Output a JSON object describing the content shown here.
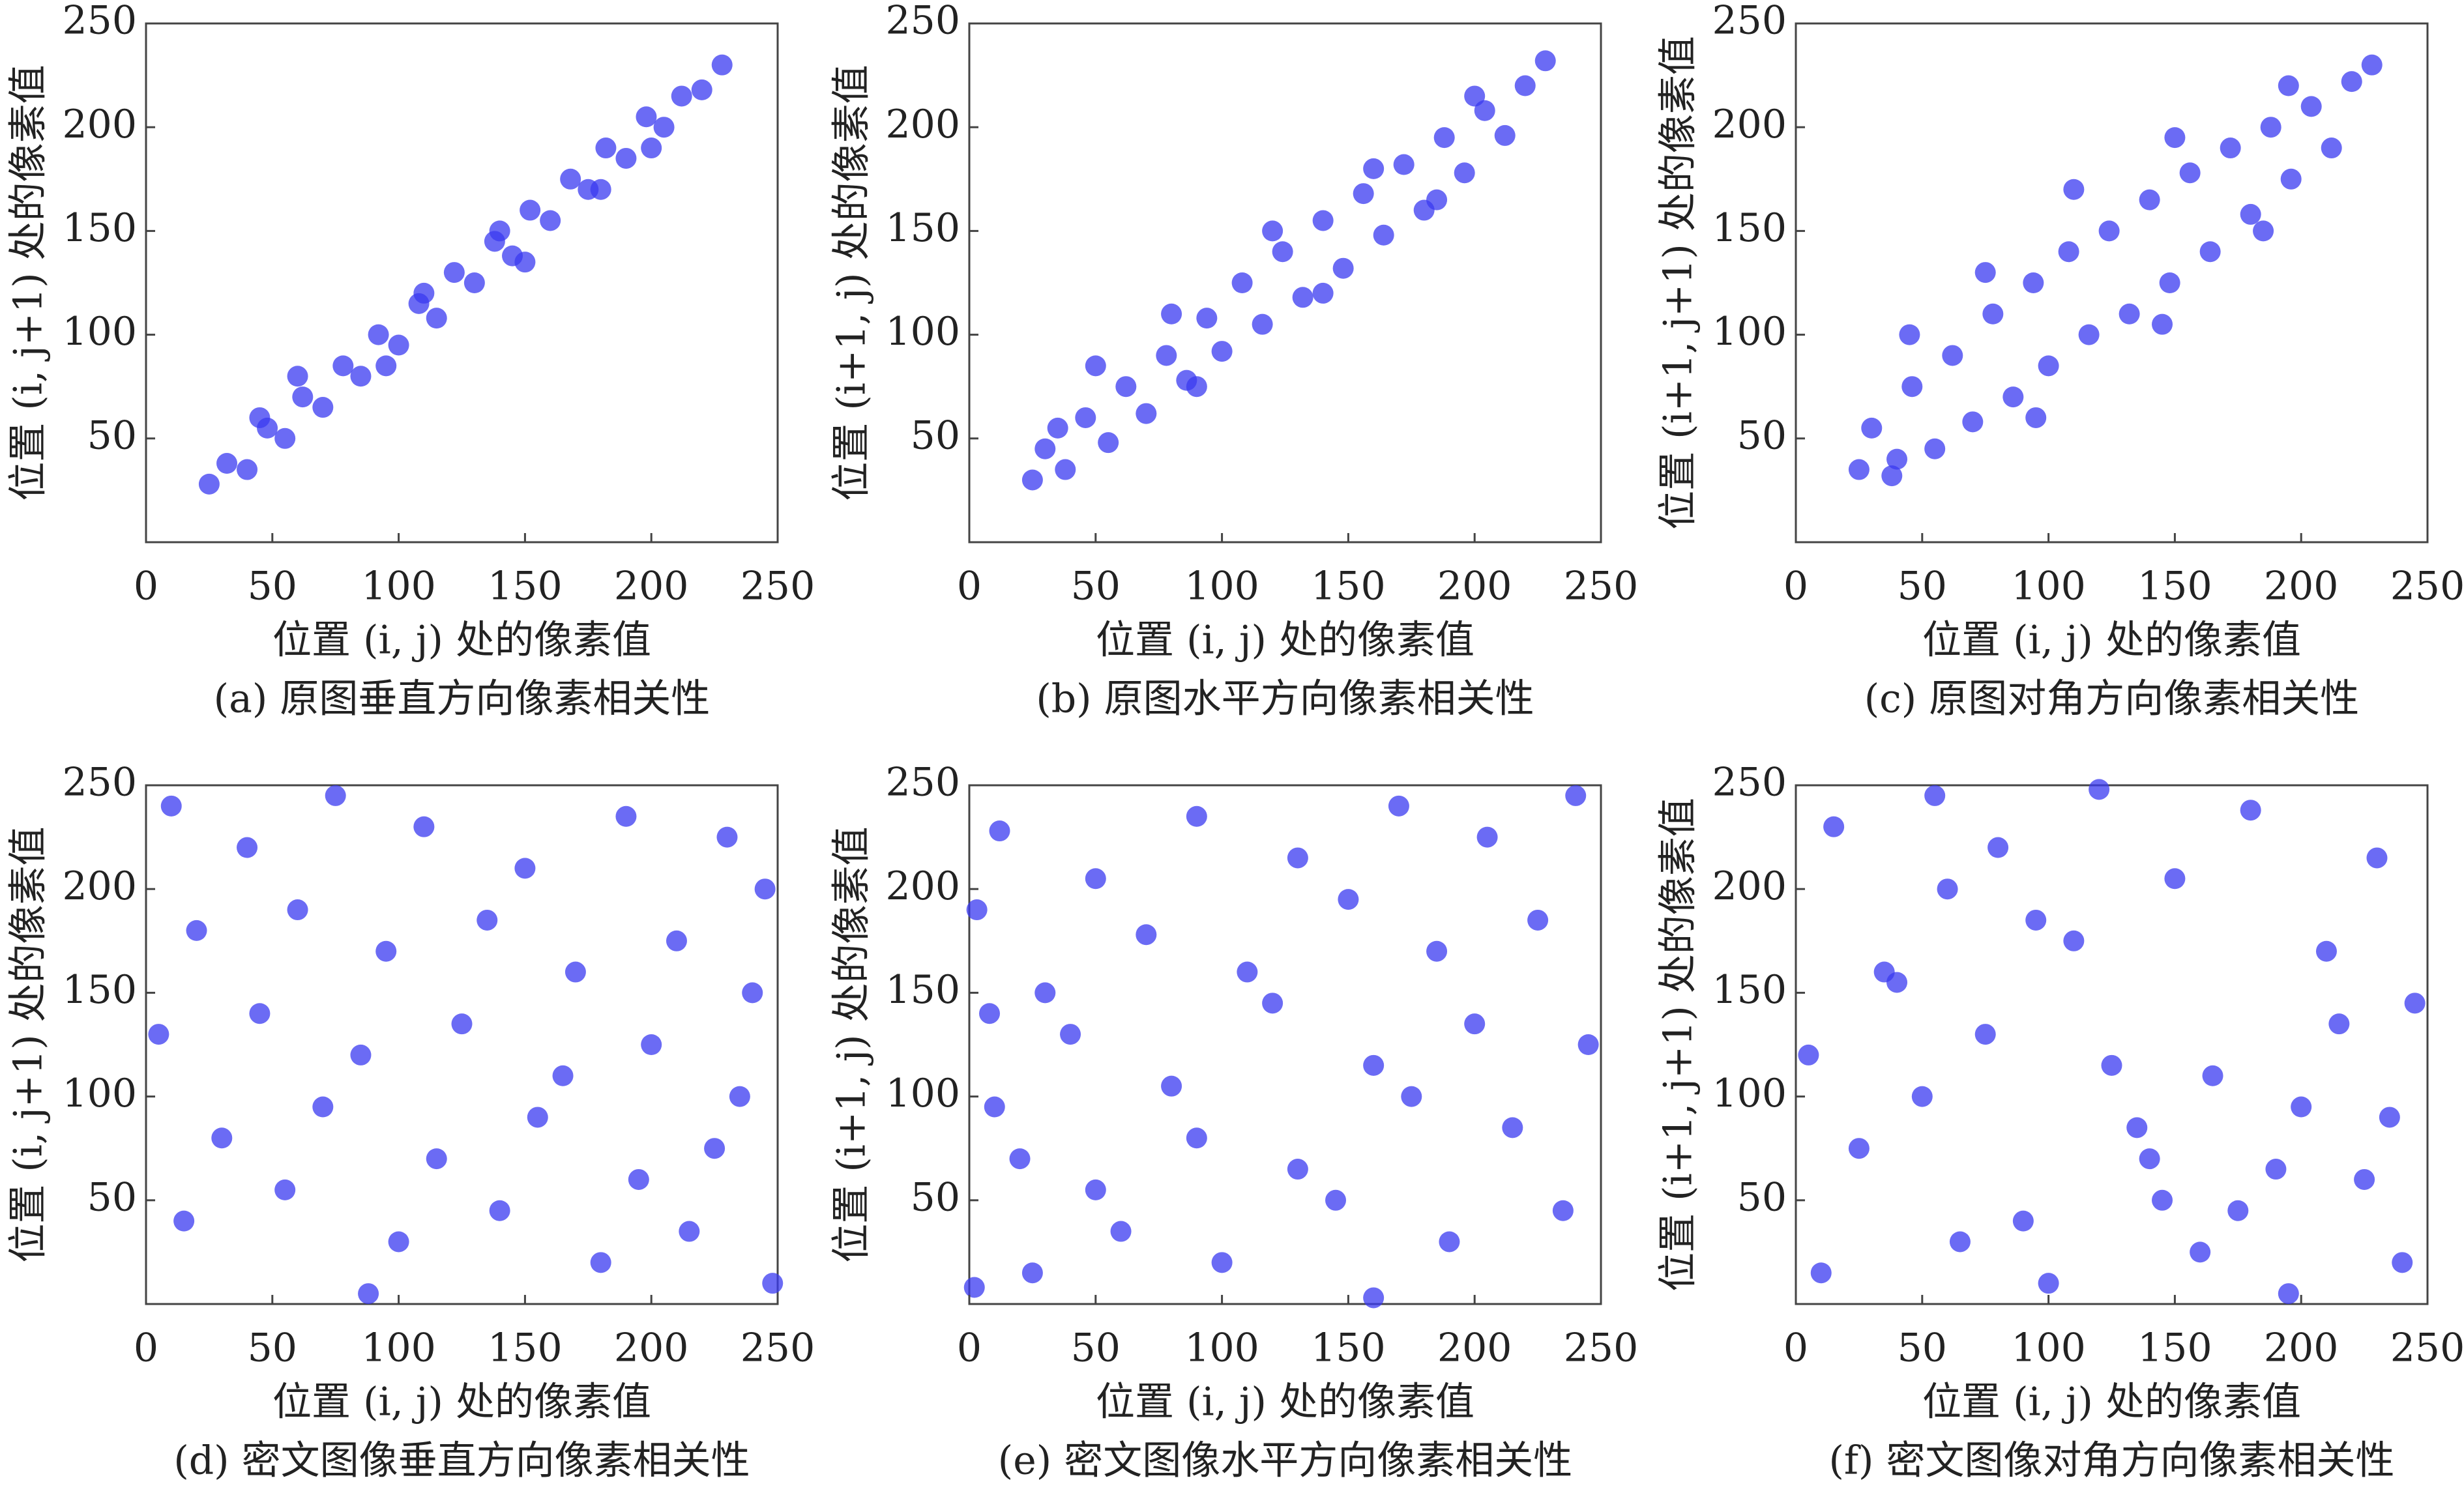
{
  "chart_data": [
    {
      "type": "scatter",
      "caption": "(a) 原图垂直方向像素相关性",
      "xlabel": "位置 (i, j) 处的像素值",
      "ylabel": "位置 (i, j+1) 处的像素值",
      "x": [
        25,
        32,
        40,
        48,
        55,
        62,
        70,
        78,
        85,
        92,
        100,
        108,
        115,
        122,
        130,
        138,
        145,
        152,
        160,
        168,
        175,
        182,
        190,
        198,
        205,
        212,
        220,
        228,
        60,
        150,
        110,
        180,
        45,
        95,
        140,
        200
      ],
      "values": [
        28,
        38,
        35,
        55,
        50,
        70,
        65,
        85,
        80,
        100,
        95,
        115,
        108,
        130,
        125,
        145,
        138,
        160,
        155,
        175,
        170,
        190,
        185,
        205,
        200,
        215,
        218,
        230,
        80,
        135,
        120,
        170,
        60,
        85,
        150,
        190
      ],
      "xlim": [
        0,
        250
      ],
      "ylim": [
        0,
        250
      ],
      "xticks": [
        0,
        50,
        100,
        150,
        200,
        250
      ],
      "yticks": [
        50,
        100,
        150,
        200,
        250
      ],
      "color": "#3a3af0"
    },
    {
      "type": "scatter",
      "caption": "(b) 原图水平方向像素相关性",
      "xlabel": "位置 (i, j) 处的像素值",
      "ylabel": "位置 (i+1, j) 处的像素值",
      "x": [
        25,
        30,
        38,
        46,
        55,
        62,
        70,
        78,
        86,
        94,
        100,
        108,
        116,
        124,
        132,
        140,
        148,
        156,
        164,
        172,
        180,
        188,
        196,
        204,
        212,
        220,
        228,
        50,
        80,
        120,
        160,
        200,
        35,
        90,
        140,
        185
      ],
      "values": [
        30,
        45,
        35,
        60,
        48,
        75,
        62,
        90,
        78,
        108,
        92,
        125,
        105,
        140,
        118,
        155,
        132,
        168,
        148,
        182,
        160,
        195,
        178,
        208,
        196,
        220,
        232,
        85,
        110,
        150,
        180,
        215,
        55,
        75,
        120,
        165
      ],
      "xlim": [
        0,
        250
      ],
      "ylim": [
        0,
        250
      ],
      "xticks": [
        0,
        50,
        100,
        150,
        200,
        250
      ],
      "yticks": [
        50,
        100,
        150,
        200,
        250
      ],
      "color": "#3a3af0"
    },
    {
      "type": "scatter",
      "caption": "(c) 原图对角方向像素相关性",
      "xlabel": "位置 (i, j) 处的像素值",
      "ylabel": "位置 (i+1, j+1) 处的像素值",
      "x": [
        25,
        30,
        38,
        46,
        55,
        62,
        70,
        78,
        86,
        94,
        100,
        108,
        116,
        124,
        132,
        140,
        148,
        156,
        164,
        172,
        180,
        188,
        196,
        204,
        212,
        220,
        228,
        45,
        75,
        110,
        150,
        195,
        40,
        95,
        145,
        185
      ],
      "values": [
        35,
        55,
        32,
        75,
        45,
        90,
        58,
        110,
        70,
        125,
        85,
        140,
        100,
        150,
        110,
        165,
        125,
        178,
        140,
        190,
        158,
        200,
        175,
        210,
        190,
        222,
        230,
        100,
        130,
        170,
        195,
        220,
        40,
        60,
        105,
        150
      ],
      "xlim": [
        0,
        250
      ],
      "ylim": [
        0,
        250
      ],
      "xticks": [
        0,
        50,
        100,
        150,
        200,
        250
      ],
      "yticks": [
        50,
        100,
        150,
        200,
        250
      ],
      "color": "#3a3af0"
    },
    {
      "type": "scatter",
      "caption": "(d) 密文图像垂直方向像素相关性",
      "xlabel": "位置 (i, j) 处的像素值",
      "ylabel": "位置 (i, j+1) 处的像素值",
      "x": [
        10,
        40,
        75,
        110,
        150,
        190,
        230,
        245,
        20,
        60,
        95,
        135,
        170,
        210,
        240,
        5,
        45,
        85,
        125,
        165,
        200,
        235,
        30,
        70,
        115,
        155,
        195,
        225,
        15,
        55,
        100,
        140,
        180,
        215,
        248,
        88
      ],
      "values": [
        240,
        220,
        245,
        230,
        210,
        235,
        225,
        200,
        180,
        190,
        170,
        185,
        160,
        175,
        150,
        130,
        140,
        120,
        135,
        110,
        125,
        100,
        80,
        95,
        70,
        90,
        60,
        75,
        40,
        55,
        30,
        45,
        20,
        35,
        10,
        5
      ],
      "xlim": [
        0,
        250
      ],
      "ylim": [
        0,
        250
      ],
      "xticks": [
        0,
        50,
        100,
        150,
        200,
        250
      ],
      "yticks": [
        50,
        100,
        150,
        200,
        250
      ],
      "color": "#3a3af0"
    },
    {
      "type": "scatter",
      "caption": "(e) 密文图像水平方向像素相关性",
      "xlabel": "位置 (i, j) 处的像素值",
      "ylabel": "位置 (i+1, j) 处的像素值",
      "x": [
        240,
        205,
        170,
        130,
        90,
        50,
        12,
        3,
        225,
        185,
        150,
        110,
        70,
        30,
        8,
        245,
        200,
        160,
        120,
        80,
        40,
        10,
        215,
        175,
        130,
        90,
        50,
        20,
        235,
        190,
        145,
        100,
        60,
        25,
        2,
        160
      ],
      "values": [
        245,
        225,
        240,
        215,
        235,
        205,
        228,
        190,
        185,
        170,
        195,
        160,
        178,
        150,
        140,
        125,
        135,
        115,
        145,
        105,
        130,
        95,
        85,
        100,
        65,
        80,
        55,
        70,
        45,
        30,
        50,
        20,
        35,
        15,
        8,
        3
      ],
      "xlim": [
        0,
        250
      ],
      "ylim": [
        0,
        250
      ],
      "xticks": [
        0,
        50,
        100,
        150,
        200,
        250
      ],
      "yticks": [
        50,
        100,
        150,
        200,
        250
      ],
      "color": "#3a3af0"
    },
    {
      "type": "scatter",
      "caption": "(f) 密文图像对角方向像素相关性",
      "xlabel": "位置 (i, j) 处的像素值",
      "ylabel": "位置 (i+1, j+1) 处的像素值",
      "x": [
        120,
        15,
        230,
        60,
        180,
        95,
        210,
        35,
        150,
        245,
        5,
        75,
        165,
        110,
        200,
        50,
        135,
        225,
        25,
        90,
        190,
        65,
        240,
        145,
        10,
        175,
        100,
        215,
        40,
        125,
        160,
        80,
        235,
        55,
        195,
        140
      ],
      "values": [
        248,
        230,
        215,
        200,
        238,
        185,
        170,
        160,
        205,
        145,
        120,
        130,
        110,
        175,
        95,
        100,
        85,
        60,
        75,
        40,
        65,
        30,
        20,
        50,
        15,
        45,
        10,
        135,
        155,
        115,
        25,
        220,
        90,
        245,
        5,
        70
      ],
      "xlim": [
        0,
        250
      ],
      "ylim": [
        0,
        250
      ],
      "xticks": [
        0,
        50,
        100,
        150,
        200,
        250
      ],
      "yticks": [
        50,
        100,
        150,
        200,
        250
      ],
      "color": "#3a3af0"
    }
  ]
}
